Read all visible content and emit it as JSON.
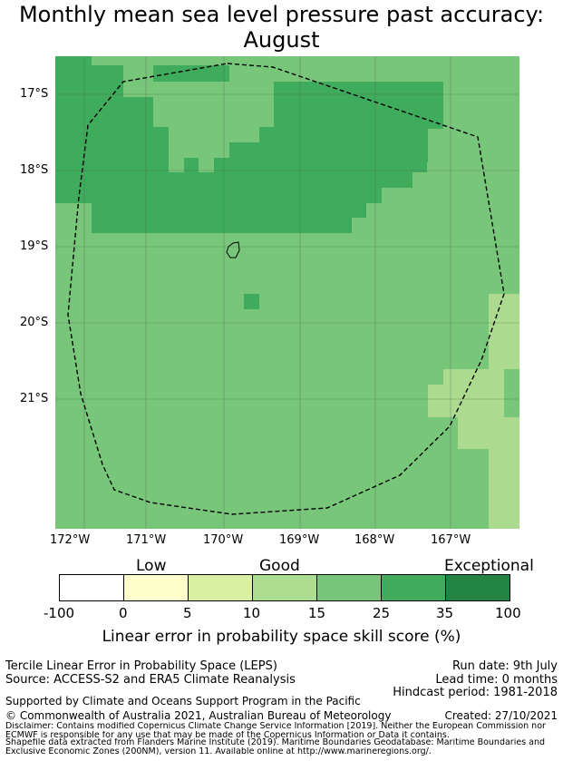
{
  "title_line1": "Monthly mean sea level pressure past accuracy:",
  "title_line2": "August",
  "map": {
    "lat_labels": [
      "17°S",
      "18°S",
      "19°S",
      "20°S",
      "21°S"
    ],
    "lon_labels": [
      "172°W",
      "171°W",
      "170°W",
      "169°W",
      "168°W",
      "167°W"
    ],
    "colors": {
      "dark": "#3fab5c",
      "mid": "#78c67a",
      "light": "#acdb8f",
      "grid": "#4d6b4d"
    }
  },
  "colorbar": {
    "category_labels": {
      "low": "Low",
      "good": "Good",
      "exceptional": "Exceptional"
    },
    "ticks": [
      "-100",
      "0",
      "5",
      "10",
      "15",
      "25",
      "35",
      "100"
    ],
    "colors": [
      "#ffffff",
      "#ffffcc",
      "#d9f0a3",
      "#addd8e",
      "#78c679",
      "#41ab5d",
      "#238443"
    ],
    "title": "Linear error in probability space skill score (%)"
  },
  "footer": {
    "left_line1": "Tercile Linear Error in Probability Space (LEPS)",
    "left_line2": "Source: ACCESS-S2 and ERA5 Climate Reanalysis",
    "run_date": "Run date: 9th July",
    "lead_time": "Lead time: 0 months",
    "hindcast": "Hindcast period: 1981-2018",
    "support": "Supported by Climate and Oceans Support Program in the Pacific",
    "copyright": "© Commonwealth of Australia 2021, Australian Bureau of Meteorology",
    "created": "Created: 27/10/2021",
    "disclaimer1": "Disclaimer: Contains modified Copernicus Climate Change Service Information [2019]. Neither the European Commission nor",
    "disclaimer2": "ECMWF is responsible for any use that may be made of the Copernicus Information or Data it contains.",
    "shapefile1": "Shapefile data extracted from Flanders Marine Institute (2019). Maritime Boundaries Geodatabase: Maritime Boundaries and",
    "shapefile2": "Exclusive Economic Zones (200NM), version 11. Available online at http://www.marineregions.org/."
  }
}
